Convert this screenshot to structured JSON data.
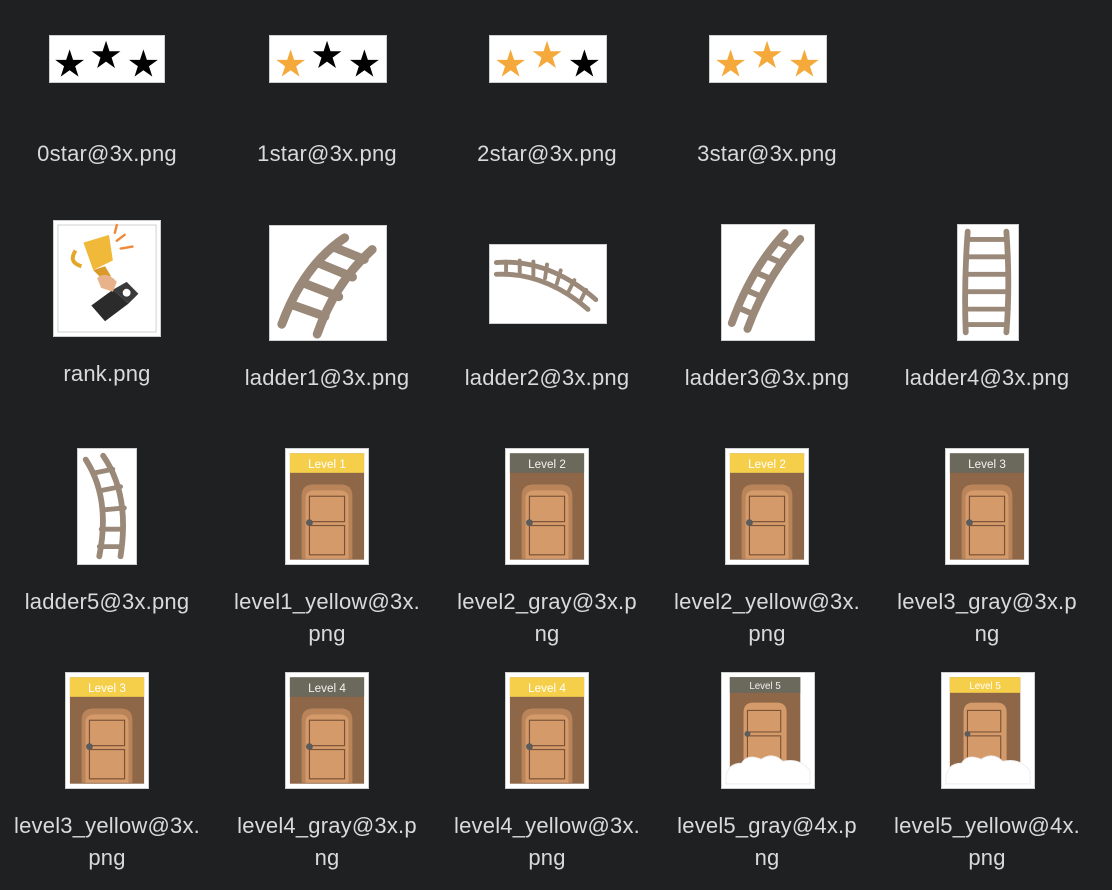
{
  "files": [
    {
      "name": "0star@3x.png",
      "kind": "stars",
      "filled": 0
    },
    {
      "name": "1star@3x.png",
      "kind": "stars",
      "filled": 1
    },
    {
      "name": "2star@3x.png",
      "kind": "stars",
      "filled": 2
    },
    {
      "name": "3star@3x.png",
      "kind": "stars",
      "filled": 3
    },
    {
      "name": "rank.png",
      "kind": "trophy"
    },
    {
      "name": "ladder1@3x.png",
      "kind": "ladder"
    },
    {
      "name": "ladder2@3x.png",
      "kind": "ladder"
    },
    {
      "name": "ladder3@3x.png",
      "kind": "ladder"
    },
    {
      "name": "ladder4@3x.png",
      "kind": "ladder"
    },
    {
      "name": "ladder5@3x.png",
      "kind": "ladder"
    },
    {
      "name": "level1_yellow@3x.\npng",
      "kind": "door",
      "badge": "Level 1",
      "badge_color": "yellow"
    },
    {
      "name": "level2_gray@3x.p\nng",
      "kind": "door",
      "badge": "Level 2",
      "badge_color": "gray"
    },
    {
      "name": "level2_yellow@3x.\npng",
      "kind": "door",
      "badge": "Level 2",
      "badge_color": "yellow"
    },
    {
      "name": "level3_gray@3x.p\nng",
      "kind": "door",
      "badge": "Level 3",
      "badge_color": "gray"
    },
    {
      "name": "level3_yellow@3x.\npng",
      "kind": "door",
      "badge": "Level 3",
      "badge_color": "yellow"
    },
    {
      "name": "level4_gray@3x.p\nng",
      "kind": "door",
      "badge": "Level 4",
      "badge_color": "gray"
    },
    {
      "name": "level4_yellow@3x.\npng",
      "kind": "door",
      "badge": "Level 4",
      "badge_color": "yellow"
    },
    {
      "name": "level5_gray@4x.p\nng",
      "kind": "door-cloud",
      "badge": "Level 5",
      "badge_color": "gray"
    },
    {
      "name": "level5_yellow@4x.\npng",
      "kind": "door-cloud",
      "badge": "Level 5",
      "badge_color": "yellow"
    }
  ],
  "colors": {
    "background": "#1f2022",
    "label_text": "#dadada",
    "star_filled": "#f4a93a",
    "star_empty": "#000000",
    "ladder": "#9a8878",
    "door_wall": "#8d6748",
    "door": "#d49a6a",
    "badge_yellow": "#f5cf4a",
    "badge_gray": "#6b685c"
  }
}
